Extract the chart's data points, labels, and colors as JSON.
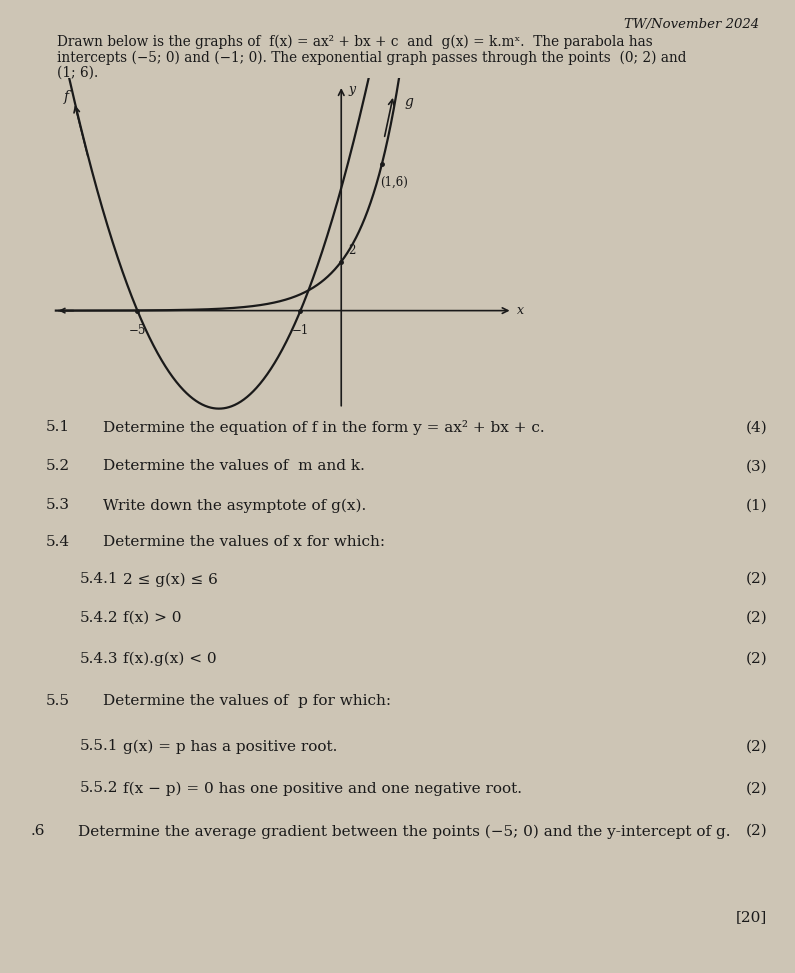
{
  "header": "TW/November 2024",
  "intro_line1": "Drawn below is the graphs of  f(x) = ax² + bx + c  and  g(x) = k.mˣ.  The parabola has",
  "intro_line2": "intercepts (−5; 0) and (−1; 0). The exponential graph passes through the points  (0; 2) and",
  "intro_line3": "(1; 6).",
  "q51_num": "5.1",
  "q51_text": "Determine the equation of f in the form y = ax² + bx + c.",
  "q51_marks": "(4)",
  "q52_num": "5.2",
  "q52_text": "Determine the values of  m and k.",
  "q52_marks": "(3)",
  "q53_num": "5.3",
  "q53_text": "Write down the asymptote of g(x).",
  "q53_marks": "(1)",
  "q54_num": "5.4",
  "q54_text": "Determine the values of x for which:",
  "q541_num": "5.4.1",
  "q541_text": "2 ≤ g(x) ≤ 6",
  "q541_marks": "(2)",
  "q542_num": "5.4.2",
  "q542_text": "f(x) > 0",
  "q542_marks": "(2)",
  "q543_num": "5.4.3",
  "q543_text": "f(x).g(x) < 0",
  "q543_marks": "(2)",
  "q55_num": "5.5",
  "q55_text": "Determine the values of  p for which:",
  "q551_num": "5.5.1",
  "q551_text": "g(x) = p has a positive root.",
  "q551_marks": "(2)",
  "q552_num": "5.5.2",
  "q552_text": "f(x − p) = 0 has one positive and one negative root.",
  "q552_marks": "(2)",
  "q56_num": ".6",
  "q56_text": "Determine the average gradient between the points (−5; 0) and the y-intercept of g.",
  "q56_marks": "(2)",
  "total": "[20]",
  "bg_color": "#cdc5b8",
  "text_color": "#1a1a1a",
  "page_bg": "#c8bfb0"
}
